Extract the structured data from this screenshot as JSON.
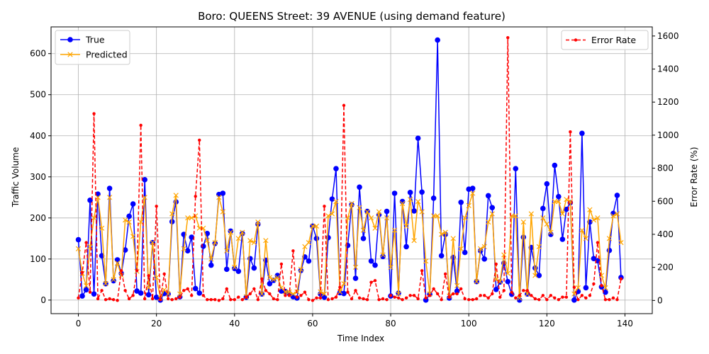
{
  "chart_data": {
    "type": "line",
    "title": "Boro: QUEENS Street: 39 AVENUE (using demand feature)",
    "xlabel": "Time Index",
    "ylabel": "Traffic Volume",
    "y2label": "Error Rate (%)",
    "xlim": [
      -7,
      147
    ],
    "ylim": [
      -33,
      665
    ],
    "y2lim": [
      -80,
      1655
    ],
    "xticks": [
      0,
      20,
      40,
      60,
      80,
      100,
      120,
      140
    ],
    "yticks": [
      0,
      100,
      200,
      300,
      400,
      500,
      600
    ],
    "y2ticks": [
      0,
      200,
      400,
      600,
      800,
      1000,
      1200,
      1400,
      1600
    ],
    "grid": true,
    "legend_left": "top-left",
    "legend_right": "top-right",
    "series": [
      {
        "name": "True",
        "color": "#0000ff",
        "marker": "circle",
        "axis": "left",
        "values": [
          147,
          10,
          25,
          243,
          15,
          258,
          108,
          40,
          272,
          47,
          98,
          65,
          122,
          204,
          234,
          22,
          17,
          293,
          13,
          140,
          7,
          0,
          16,
          15,
          191,
          239,
          8,
          160,
          120,
          153,
          28,
          17,
          131,
          162,
          85,
          138,
          257,
          260,
          75,
          168,
          77,
          70,
          162,
          7,
          101,
          78,
          185,
          15,
          97,
          40,
          48,
          60,
          22,
          21,
          16,
          8,
          5,
          72,
          105,
          95,
          180,
          150,
          15,
          7,
          152,
          246,
          320,
          18,
          16,
          133,
          232,
          53,
          275,
          150,
          216,
          95,
          85,
          208,
          106,
          216,
          10,
          260,
          17,
          240,
          130,
          262,
          217,
          394,
          263,
          0,
          14,
          248,
          633,
          108,
          160,
          5,
          104,
          22,
          238,
          116,
          270,
          272,
          45,
          120,
          100,
          254,
          225,
          26,
          44,
          90,
          45,
          14,
          320,
          0,
          153,
          15,
          128,
          78,
          60,
          223,
          283,
          160,
          328,
          252,
          148,
          221,
          237,
          0,
          21,
          406,
          30,
          190,
          101,
          96,
          32,
          19,
          121,
          211,
          255,
          55
        ]
      },
      {
        "name": "Predicted",
        "color": "#ffa500",
        "marker": "x",
        "axis": "left",
        "values": [
          125,
          65,
          35,
          130,
          200,
          250,
          175,
          40,
          250,
          50,
          90,
          60,
          195,
          190,
          155,
          70,
          190,
          250,
          30,
          140,
          55,
          5,
          25,
          15,
          210,
          255,
          15,
          125,
          200,
          200,
          205,
          175,
          175,
          145,
          100,
          140,
          250,
          215,
          120,
          165,
          80,
          150,
          165,
          8,
          145,
          140,
          190,
          15,
          145,
          55,
          50,
          55,
          30,
          20,
          20,
          15,
          20,
          75,
          130,
          140,
          180,
          180,
          20,
          15,
          205,
          210,
          240,
          20,
          40,
          200,
          235,
          80,
          225,
          170,
          215,
          200,
          175,
          215,
          110,
          200,
          80,
          170,
          15,
          235,
          180,
          245,
          145,
          240,
          215,
          95,
          15,
          205,
          205,
          160,
          165,
          10,
          150,
          35,
          125,
          200,
          230,
          260,
          45,
          125,
          130,
          190,
          210,
          50,
          45,
          110,
          65,
          205,
          205,
          5,
          190,
          15,
          210,
          60,
          130,
          200,
          185,
          165,
          240,
          240,
          210,
          245,
          240,
          15,
          30,
          170,
          150,
          220,
          195,
          200,
          60,
          30,
          150,
          205,
          210,
          140
        ]
      },
      {
        "name": "Error Rate",
        "color": "#ff0000",
        "marker": "dot",
        "dashed": true,
        "axis": "right",
        "values": [
          15,
          170,
          350,
          50,
          1130,
          10,
          60,
          5,
          10,
          5,
          0,
          180,
          60,
          10,
          30,
          180,
          1060,
          10,
          150,
          10,
          570,
          5,
          160,
          10,
          5,
          10,
          20,
          60,
          70,
          30,
          630,
          970,
          30,
          5,
          5,
          5,
          0,
          10,
          70,
          5,
          5,
          20,
          5,
          20,
          40,
          70,
          5,
          130,
          60,
          40,
          10,
          5,
          220,
          30,
          30,
          300,
          20,
          30,
          50,
          5,
          0,
          15,
          15,
          570,
          5,
          10,
          20,
          80,
          1180,
          50,
          10,
          60,
          15,
          10,
          5,
          110,
          120,
          5,
          10,
          5,
          30,
          20,
          15,
          5,
          15,
          30,
          30,
          10,
          180,
          15,
          30,
          70,
          40,
          5,
          160,
          20,
          40,
          40,
          70,
          10,
          5,
          5,
          10,
          30,
          30,
          15,
          40,
          220,
          20,
          60,
          1590,
          50,
          15,
          30,
          60,
          60,
          30,
          10,
          5,
          30,
          5,
          30,
          15,
          5,
          20,
          20,
          1020,
          80,
          5,
          30,
          15,
          30,
          100,
          350,
          90,
          5,
          5,
          15,
          5,
          130
        ]
      }
    ]
  }
}
